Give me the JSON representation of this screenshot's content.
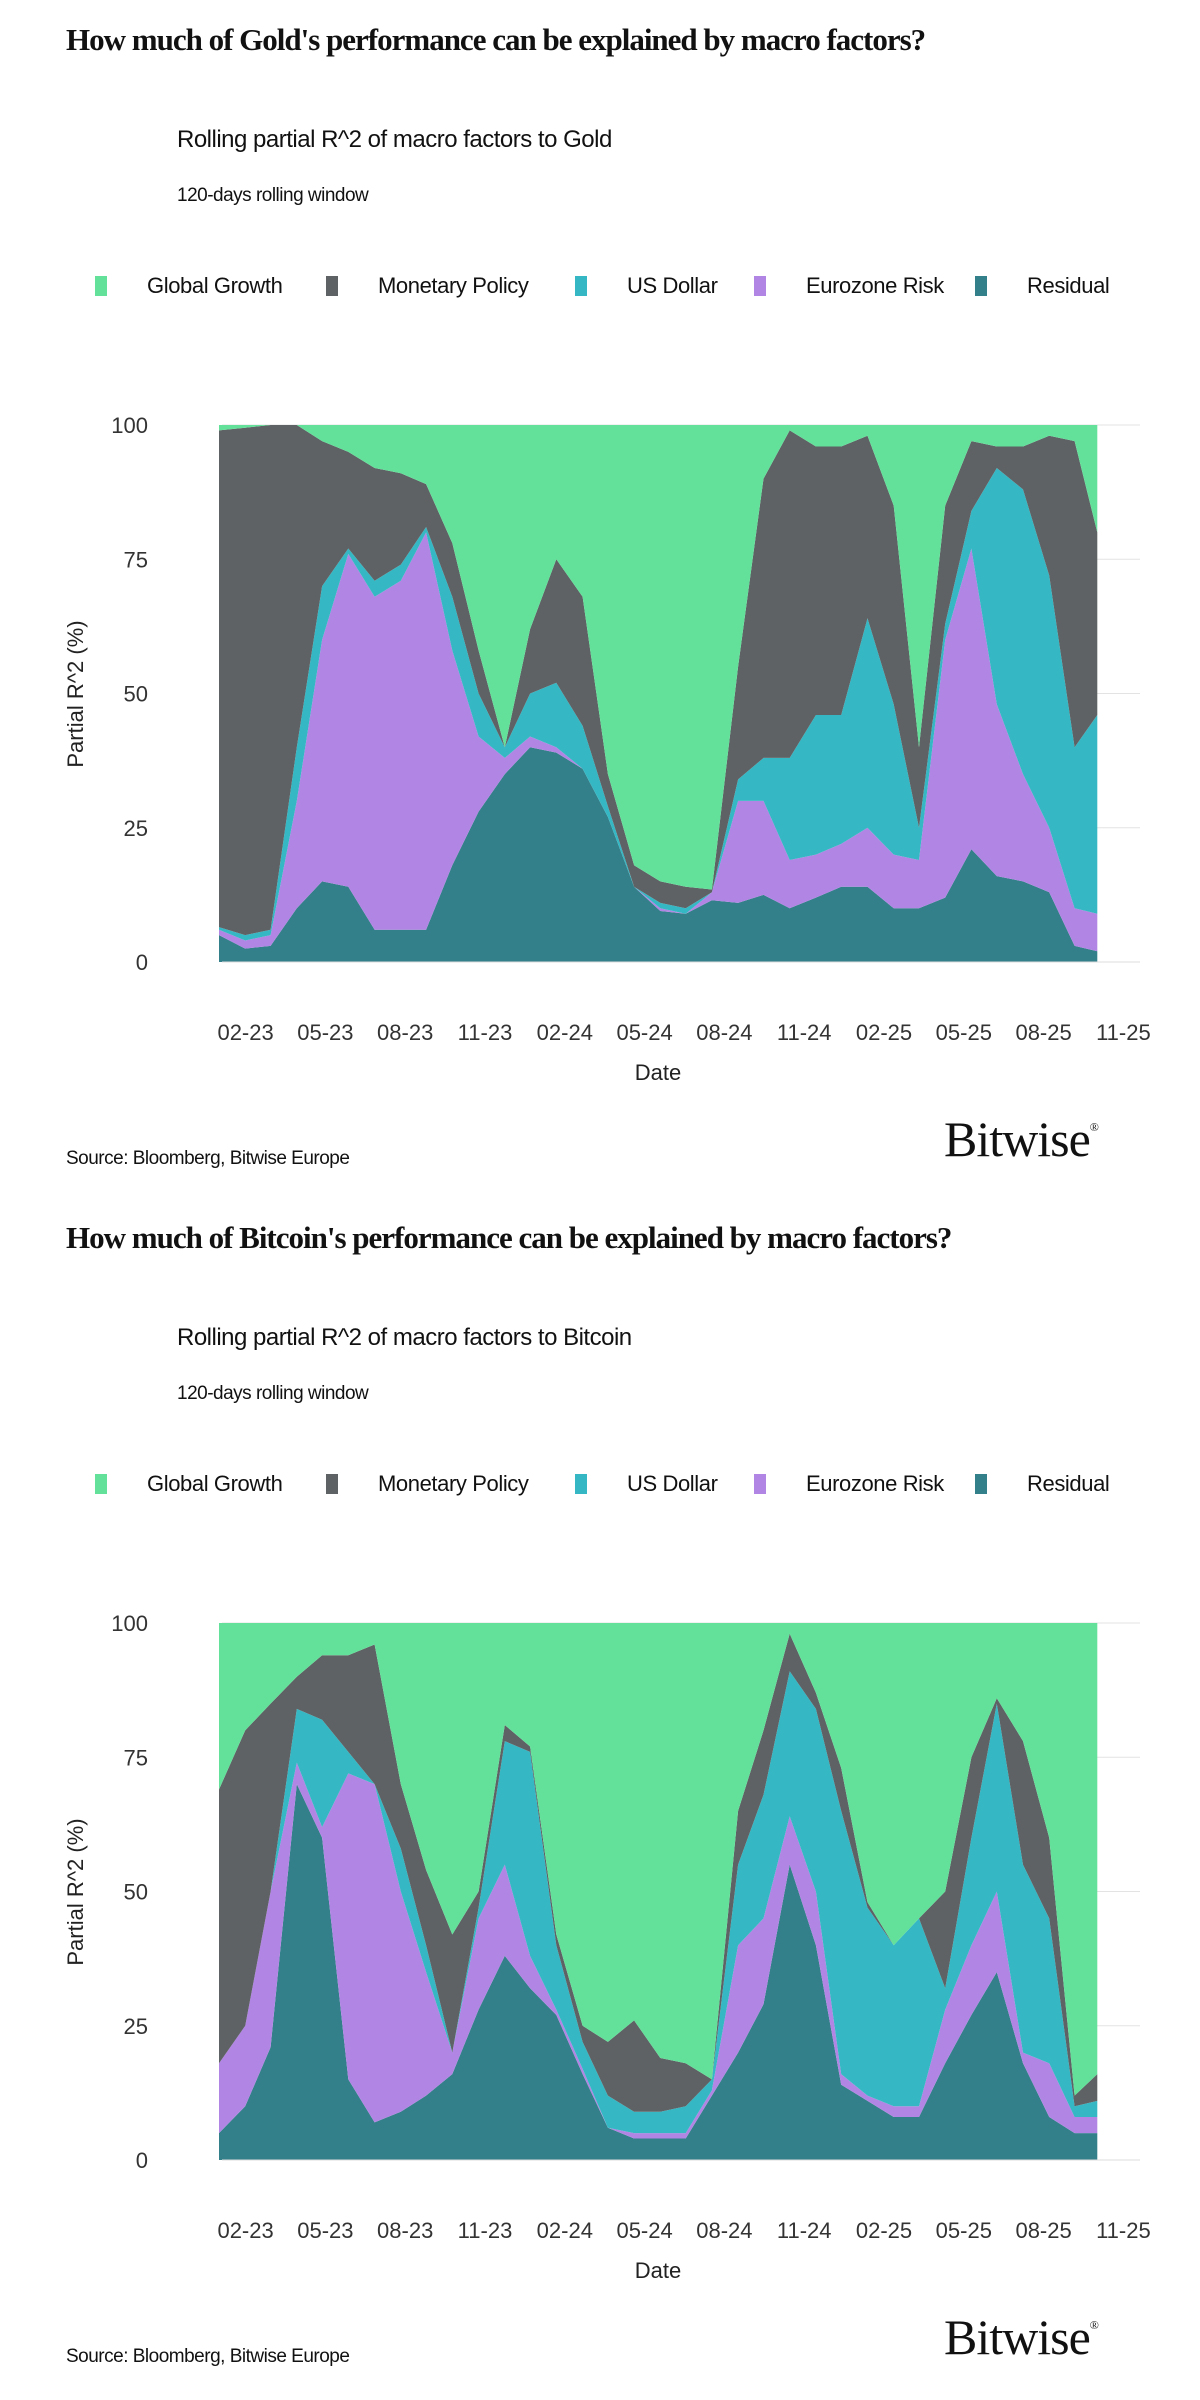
{
  "colors": {
    "Global Growth": "#63E19A",
    "Monetary Policy": "#5E6265",
    "US Dollar": "#35B8C4",
    "Eurozone Risk": "#B185E3",
    "Residual": "#33808A",
    "grid": "#E3E3E3",
    "text": "#333333"
  },
  "footer": {
    "source": "Source: Bloomberg, Bitwise Europe",
    "logo": "Bitwise"
  },
  "chart_data": [
    {
      "type": "area",
      "stacked": true,
      "heading": "How much of Gold's performance can be explained by macro factors?",
      "title": "Rolling partial R^2 of macro factors to Gold",
      "subtitle": "120-days rolling window",
      "xlabel": "Date",
      "ylabel": "Partial R^2 (%)",
      "ylim": [
        0,
        100
      ],
      "yticks": [
        0,
        25,
        50,
        75,
        100
      ],
      "xticks": [
        "02-23",
        "05-23",
        "08-23",
        "11-23",
        "02-24",
        "05-24",
        "08-24",
        "11-24",
        "02-25",
        "05-25",
        "08-25",
        "11-25"
      ],
      "grid": true,
      "legend": "top",
      "x": [
        "2023-01-01",
        "2023-01-31",
        "2023-03-01",
        "2023-03-31",
        "2023-04-29",
        "2023-05-29",
        "2023-06-28",
        "2023-07-28",
        "2023-08-26",
        "2023-09-25",
        "2023-10-25",
        "2023-11-24",
        "2023-12-23",
        "2024-01-22",
        "2024-02-21",
        "2024-03-21",
        "2024-04-20",
        "2024-05-20",
        "2024-06-18",
        "2024-07-18",
        "2024-08-17",
        "2024-09-15",
        "2024-10-15",
        "2024-11-14",
        "2024-12-13",
        "2025-01-12",
        "2025-02-11",
        "2025-03-12",
        "2025-04-11",
        "2025-05-11",
        "2025-06-09",
        "2025-07-09",
        "2025-08-08",
        "2025-09-06",
        "2025-10-02"
      ],
      "series": [
        {
          "name": "Global Growth",
          "values": [
            1,
            0.5,
            0,
            0,
            3,
            5,
            8,
            9,
            11,
            22,
            42,
            60,
            38,
            25,
            32,
            65,
            82,
            85,
            86,
            86.5,
            45,
            10,
            1,
            4,
            4,
            2,
            15,
            60,
            15,
            3,
            4,
            4,
            2,
            3,
            20
          ]
        },
        {
          "name": "Monetary Policy",
          "values": [
            92.5,
            94.5,
            94,
            60,
            27,
            18,
            21,
            17,
            8,
            10,
            8,
            0,
            12,
            23,
            24,
            6,
            4,
            4,
            4,
            0.5,
            21,
            52,
            61,
            50,
            50,
            34,
            37,
            15,
            22,
            13,
            4,
            8,
            26,
            57,
            34
          ]
        },
        {
          "name": "US Dollar",
          "values": [
            0.5,
            1,
            1,
            10,
            10,
            1,
            3,
            3,
            1,
            10,
            8,
            2,
            8,
            12,
            8,
            2,
            0,
            1,
            1,
            0,
            4,
            8,
            19,
            26,
            24,
            39,
            28,
            6,
            3,
            7,
            44,
            53,
            47,
            30,
            37
          ]
        },
        {
          "name": "Eurozone Risk",
          "values": [
            1,
            1.5,
            2,
            20,
            45,
            62,
            62,
            65,
            74,
            40,
            14,
            3,
            2,
            1,
            0,
            0,
            0,
            0.5,
            0,
            1.5,
            19,
            17.5,
            9,
            8,
            8,
            11,
            10,
            9,
            48,
            56,
            32,
            20,
            12,
            7,
            7
          ]
        },
        {
          "name": "Residual",
          "values": [
            5,
            2.5,
            3,
            10,
            15,
            14,
            6,
            6,
            6,
            18,
            28,
            35,
            40,
            39,
            36,
            27,
            14,
            9.5,
            9,
            11.5,
            11,
            12.5,
            10,
            12,
            14,
            14,
            10,
            10,
            12,
            21,
            16,
            15,
            13,
            3,
            2
          ]
        }
      ]
    },
    {
      "type": "area",
      "stacked": true,
      "heading": "How much of Bitcoin's performance can be explained by macro factors?",
      "title": "Rolling partial R^2 of macro factors to Bitcoin",
      "subtitle": "120-days rolling window",
      "xlabel": "Date",
      "ylabel": "Partial R^2 (%)",
      "ylim": [
        0,
        100
      ],
      "yticks": [
        0,
        25,
        50,
        75,
        100
      ],
      "xticks": [
        "02-23",
        "05-23",
        "08-23",
        "11-23",
        "02-24",
        "05-24",
        "08-24",
        "11-24",
        "02-25",
        "05-25",
        "08-25",
        "11-25"
      ],
      "grid": true,
      "legend": "top",
      "x": [
        "2023-01-01",
        "2023-01-31",
        "2023-03-01",
        "2023-03-31",
        "2023-04-29",
        "2023-05-29",
        "2023-06-28",
        "2023-07-28",
        "2023-08-26",
        "2023-09-25",
        "2023-10-25",
        "2023-11-24",
        "2023-12-23",
        "2024-01-22",
        "2024-02-21",
        "2024-03-21",
        "2024-04-20",
        "2024-05-20",
        "2024-06-18",
        "2024-07-18",
        "2024-08-17",
        "2024-09-15",
        "2024-10-15",
        "2024-11-14",
        "2024-12-13",
        "2025-01-12",
        "2025-02-11",
        "2025-03-12",
        "2025-04-11",
        "2025-05-11",
        "2025-06-09",
        "2025-07-09",
        "2025-08-08",
        "2025-09-06",
        "2025-10-02"
      ],
      "series": [
        {
          "name": "Global Growth",
          "values": [
            31,
            20,
            15,
            10,
            6,
            6,
            4,
            30,
            46,
            58,
            50,
            19,
            23,
            58,
            75,
            78,
            74,
            81,
            82,
            85,
            35,
            20,
            2,
            13,
            27,
            52,
            60,
            55,
            50,
            25,
            14,
            22,
            40,
            88,
            84
          ]
        },
        {
          "name": "Monetary Policy",
          "values": [
            51,
            55,
            35,
            6,
            12,
            18,
            26,
            12,
            14,
            22,
            3,
            3,
            1,
            2,
            3,
            10,
            17,
            10,
            8,
            0,
            10,
            12,
            7,
            3,
            8,
            1,
            0,
            0,
            18,
            15,
            1,
            23,
            15,
            2,
            5
          ]
        },
        {
          "name": "US Dollar",
          "values": [
            0,
            0,
            0,
            10,
            20,
            4,
            0,
            8,
            5,
            0,
            2,
            23,
            38,
            12,
            5,
            6,
            4,
            4,
            5,
            2,
            15,
            23,
            27,
            34,
            49,
            35,
            30,
            35,
            4,
            20,
            35,
            35,
            27,
            2,
            3
          ]
        },
        {
          "name": "Eurozone Risk",
          "values": [
            13,
            15,
            29,
            4,
            2,
            57,
            63,
            41,
            23,
            4,
            17,
            17,
            6,
            1,
            1,
            0,
            1,
            1,
            1,
            1,
            20,
            16,
            9,
            10,
            2,
            1,
            2,
            2,
            10,
            13,
            15,
            2,
            10,
            3,
            3
          ]
        },
        {
          "name": "Residual",
          "values": [
            5,
            10,
            21,
            70,
            60,
            15,
            7,
            9,
            12,
            16,
            28,
            38,
            32,
            27,
            16,
            6,
            4,
            4,
            4,
            12,
            20,
            29,
            55,
            40,
            14,
            11,
            8,
            8,
            18,
            27,
            35,
            18,
            8,
            5,
            5
          ]
        }
      ]
    }
  ]
}
